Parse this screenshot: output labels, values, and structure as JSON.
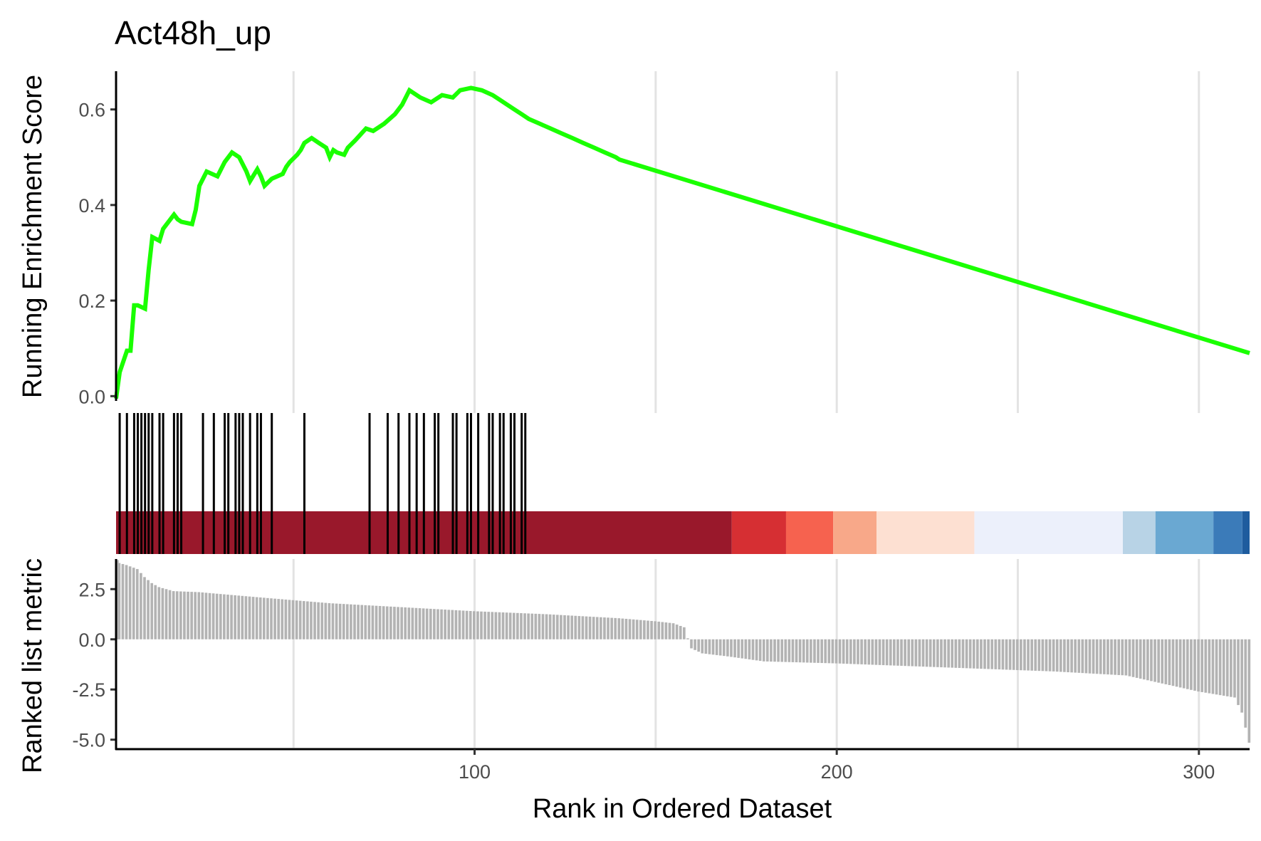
{
  "chart_data": {
    "type": "gsea-enrichment",
    "title": "Act48h_up",
    "xlabel": "Rank in Ordered Dataset",
    "xlim": [
      1,
      314
    ],
    "x_ticks": [
      100,
      200,
      300
    ],
    "panels": {
      "enrichment": {
        "type": "line",
        "ylabel": "Running Enrichment Score",
        "ylim": [
          -0.01,
          0.68
        ],
        "y_ticks": [
          0.0,
          0.2,
          0.4,
          0.6
        ],
        "y_tick_labels": [
          "0.0",
          "0.2",
          "0.4",
          "0.6"
        ],
        "line_color": "#1aff00",
        "hits": [
          2,
          4,
          6,
          7,
          8,
          9,
          10,
          11,
          13,
          14,
          17,
          18,
          19,
          25,
          28,
          31,
          32,
          34,
          35,
          36,
          38,
          40,
          41,
          44,
          53,
          71,
          76,
          79,
          82,
          84,
          86,
          89,
          90,
          94,
          95,
          98,
          99,
          101,
          104,
          105,
          107,
          108,
          110,
          111,
          113,
          114
        ],
        "series": [
          {
            "x": [
              1,
              2,
              4,
              4,
              5,
              6,
              6,
              7,
              9,
              10,
              10,
              11,
              13,
              13,
              14,
              17,
              18,
              19,
              22,
              23,
              24,
              26,
              29,
              31,
              33,
              35,
              37,
              38,
              40,
              41,
              42,
              44,
              47,
              48,
              49,
              51,
              52,
              53,
              55,
              57,
              59,
              60,
              61,
              62,
              64,
              65,
              67,
              70,
              72,
              75,
              78,
              80,
              82,
              85,
              88,
              91,
              94,
              96,
              99,
              102,
              105,
              107,
              109,
              111,
              113,
              115,
              118,
              121,
              124,
              127,
              130,
              133,
              136,
              139,
              140,
              314
            ],
            "y": [
              -0.005,
              0.05,
              0.095,
              0.095,
              0.095,
              0.19,
              0.19,
              0.19,
              0.183,
              0.265,
              0.265,
              0.333,
              0.325,
              0.325,
              0.35,
              0.38,
              0.37,
              0.365,
              0.36,
              0.39,
              0.44,
              0.47,
              0.46,
              0.49,
              0.51,
              0.5,
              0.47,
              0.45,
              0.475,
              0.46,
              0.44,
              0.455,
              0.465,
              0.48,
              0.49,
              0.505,
              0.515,
              0.53,
              0.54,
              0.53,
              0.52,
              0.5,
              0.515,
              0.51,
              0.505,
              0.52,
              0.535,
              0.56,
              0.555,
              0.57,
              0.59,
              0.61,
              0.64,
              0.625,
              0.615,
              0.63,
              0.625,
              0.64,
              0.645,
              0.64,
              0.63,
              0.62,
              0.61,
              0.6,
              0.59,
              0.58,
              0.57,
              0.56,
              0.55,
              0.54,
              0.53,
              0.52,
              0.51,
              0.5,
              0.495,
              0.09
            ]
          }
        ]
      },
      "color_bar": {
        "colors": [
          "#99182b",
          "#d62f33",
          "#f6624f",
          "#f8a889",
          "#fde0d2",
          "#ecf0fb",
          "#b8d3e6",
          "#6aa8d2",
          "#3b7bb9",
          "#1e5c9e"
        ],
        "breaks": [
          1,
          171,
          186,
          199,
          211,
          238,
          279,
          288,
          304,
          312,
          314
        ]
      },
      "ranked_metric": {
        "type": "bar",
        "ylabel": "Ranked list metric",
        "ylim": [
          -5.4,
          4.0
        ],
        "y_ticks": [
          2.5,
          0.0,
          -2.5,
          -5.0
        ],
        "y_tick_labels": [
          "2.5",
          "0.0",
          "-2.5",
          "-5.0"
        ],
        "bar_color": "#b3b3b3",
        "zero_cross": 159,
        "profile_x": [
          1,
          2,
          4,
          7,
          9,
          11,
          13,
          15,
          17,
          24,
          40,
          60,
          80,
          100,
          120,
          140,
          150,
          155,
          158,
          159,
          160,
          163,
          170,
          180,
          200,
          230,
          260,
          280,
          300,
          305,
          310,
          312,
          314
        ],
        "profile_y": [
          3.95,
          3.8,
          3.7,
          3.5,
          3.1,
          2.8,
          2.6,
          2.5,
          2.4,
          2.35,
          2.1,
          1.8,
          1.6,
          1.4,
          1.25,
          1.05,
          0.9,
          0.8,
          0.6,
          0.05,
          -0.45,
          -0.7,
          -0.85,
          -1.1,
          -1.2,
          -1.4,
          -1.6,
          -1.8,
          -2.6,
          -2.75,
          -2.9,
          -3.65,
          -5.15
        ]
      }
    }
  }
}
